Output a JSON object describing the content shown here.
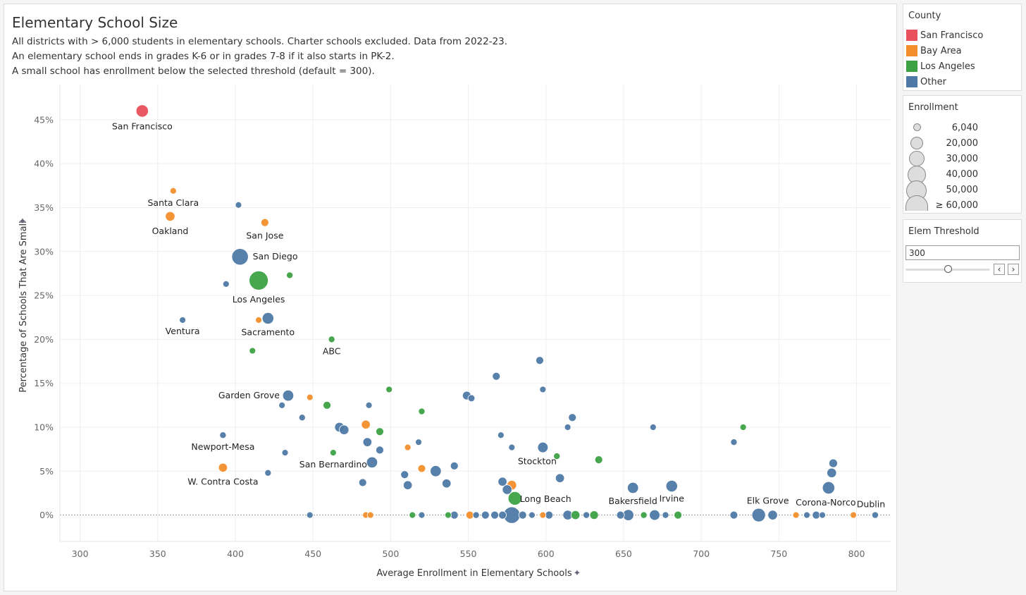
{
  "title": "Elementary School Size",
  "subtitle_lines": [
    "All districts with > 6,000 students in elementary schools. Charter schools excluded. Data from 2022-23.",
    "An elementary school ends in grades K-6 or in grades 7-8 if it also starts in PK-2.",
    "A small school has enrollment below the selected threshold (default = 300)."
  ],
  "colors": {
    "San Francisco": "#e8505b",
    "Bay Area": "#f28e2b",
    "Los Angeles": "#3da244",
    "Other": "#4e79a7"
  },
  "legend_county": {
    "title": "County",
    "items": [
      "San Francisco",
      "Bay Area",
      "Los Angeles",
      "Other"
    ]
  },
  "legend_enrollment": {
    "title": "Enrollment",
    "items": [
      "6,040",
      "20,000",
      "30,000",
      "40,000",
      "50,000",
      "≥ 60,000"
    ]
  },
  "threshold": {
    "title": "Elem Threshold",
    "value": "300",
    "prev_icon": "chevron-left-icon",
    "next_icon": "chevron-right-icon"
  },
  "chart_data": {
    "type": "scatter",
    "xlabel": "Average Enrollment in Elementary Schools",
    "ylabel": "Percentage of Schools That Are Small",
    "xlim": [
      287,
      822
    ],
    "ylim": [
      -3,
      49
    ],
    "xticks": [
      300,
      350,
      400,
      450,
      500,
      550,
      600,
      650,
      700,
      750,
      800
    ],
    "yticks": [
      0,
      5,
      10,
      15,
      20,
      25,
      30,
      35,
      40,
      45
    ],
    "ytick_labels": [
      "0%",
      "5%",
      "10%",
      "15%",
      "20%",
      "25%",
      "30%",
      "35%",
      "40%",
      "45%"
    ],
    "grid": true,
    "size_encoding": "Enrollment",
    "points": [
      {
        "x": 340,
        "y": 46,
        "county": "San Francisco",
        "enroll": 25000,
        "label": "San Francisco"
      },
      {
        "x": 360,
        "y": 36.9,
        "county": "Bay Area",
        "enroll": 6000
      },
      {
        "x": 358,
        "y": 34,
        "county": "Bay Area",
        "enroll": 15000
      },
      {
        "x": 402,
        "y": 35.3,
        "county": "Other",
        "enroll": 6000
      },
      {
        "x": 419,
        "y": 33.3,
        "county": "Bay Area",
        "enroll": 10000
      },
      {
        "x": 403,
        "y": 29.4,
        "county": "Other",
        "enroll": 45000
      },
      {
        "x": 415,
        "y": 26.7,
        "county": "Los Angeles",
        "enroll": 60000
      },
      {
        "x": 435,
        "y": 27.3,
        "county": "Los Angeles",
        "enroll": 7000
      },
      {
        "x": 394,
        "y": 26.3,
        "county": "Other",
        "enroll": 6000
      },
      {
        "x": 421,
        "y": 22.4,
        "county": "Other",
        "enroll": 22000
      },
      {
        "x": 415,
        "y": 22.2,
        "county": "Bay Area",
        "enroll": 6000
      },
      {
        "x": 366,
        "y": 22.2,
        "county": "Other",
        "enroll": 6000
      },
      {
        "x": 462,
        "y": 20,
        "county": "Los Angeles",
        "enroll": 7000
      },
      {
        "x": 411,
        "y": 18.7,
        "county": "Los Angeles",
        "enroll": 6000
      },
      {
        "x": 596,
        "y": 17.6,
        "county": "Other",
        "enroll": 10000
      },
      {
        "x": 568,
        "y": 15.8,
        "county": "Other",
        "enroll": 10000
      },
      {
        "x": 598,
        "y": 14.3,
        "county": "Other",
        "enroll": 6000
      },
      {
        "x": 499,
        "y": 14.3,
        "county": "Los Angeles",
        "enroll": 6000
      },
      {
        "x": 434,
        "y": 13.6,
        "county": "Other",
        "enroll": 20000
      },
      {
        "x": 448,
        "y": 13.4,
        "county": "Bay Area",
        "enroll": 6000
      },
      {
        "x": 549,
        "y": 13.6,
        "county": "Other",
        "enroll": 12000
      },
      {
        "x": 552,
        "y": 13.3,
        "county": "Other",
        "enroll": 8000
      },
      {
        "x": 430,
        "y": 12.5,
        "county": "Other",
        "enroll": 6000
      },
      {
        "x": 486,
        "y": 12.5,
        "county": "Other",
        "enroll": 6000
      },
      {
        "x": 459,
        "y": 12.5,
        "county": "Los Angeles",
        "enroll": 10000
      },
      {
        "x": 520,
        "y": 11.8,
        "county": "Los Angeles",
        "enroll": 7000
      },
      {
        "x": 443,
        "y": 11.1,
        "county": "Other",
        "enroll": 7000
      },
      {
        "x": 617,
        "y": 11.1,
        "county": "Other",
        "enroll": 10000
      },
      {
        "x": 467,
        "y": 10,
        "county": "Other",
        "enroll": 15000
      },
      {
        "x": 470,
        "y": 9.7,
        "county": "Other",
        "enroll": 15000
      },
      {
        "x": 484,
        "y": 10.3,
        "county": "Bay Area",
        "enroll": 13000
      },
      {
        "x": 493,
        "y": 9.5,
        "county": "Los Angeles",
        "enroll": 10000
      },
      {
        "x": 614,
        "y": 10,
        "county": "Other",
        "enroll": 6000
      },
      {
        "x": 669,
        "y": 10,
        "county": "Other",
        "enroll": 6000
      },
      {
        "x": 727,
        "y": 10,
        "county": "Los Angeles",
        "enroll": 6000
      },
      {
        "x": 392,
        "y": 9.1,
        "county": "Other",
        "enroll": 7000
      },
      {
        "x": 571,
        "y": 9.1,
        "county": "Other",
        "enroll": 6000
      },
      {
        "x": 721,
        "y": 8.3,
        "county": "Other",
        "enroll": 7000
      },
      {
        "x": 485,
        "y": 8.3,
        "county": "Other",
        "enroll": 13000
      },
      {
        "x": 518,
        "y": 8.3,
        "county": "Other",
        "enroll": 6000
      },
      {
        "x": 511,
        "y": 7.7,
        "county": "Bay Area",
        "enroll": 6000
      },
      {
        "x": 578,
        "y": 7.7,
        "county": "Other",
        "enroll": 6000
      },
      {
        "x": 598,
        "y": 7.7,
        "county": "Other",
        "enroll": 18000
      },
      {
        "x": 493,
        "y": 7.4,
        "county": "Other",
        "enroll": 10000
      },
      {
        "x": 432,
        "y": 7.1,
        "county": "Other",
        "enroll": 6000
      },
      {
        "x": 463,
        "y": 7.1,
        "county": "Los Angeles",
        "enroll": 6000
      },
      {
        "x": 607,
        "y": 6.7,
        "county": "Los Angeles",
        "enroll": 7000
      },
      {
        "x": 634,
        "y": 6.3,
        "county": "Los Angeles",
        "enroll": 10000
      },
      {
        "x": 488,
        "y": 6,
        "county": "Other",
        "enroll": 20000
      },
      {
        "x": 541,
        "y": 5.6,
        "county": "Other",
        "enroll": 10000
      },
      {
        "x": 785,
        "y": 5.9,
        "county": "Other",
        "enroll": 12000
      },
      {
        "x": 392,
        "y": 5.4,
        "county": "Bay Area",
        "enroll": 13000
      },
      {
        "x": 520,
        "y": 5.3,
        "county": "Bay Area",
        "enroll": 10000
      },
      {
        "x": 529,
        "y": 5,
        "county": "Other",
        "enroll": 20000
      },
      {
        "x": 421,
        "y": 4.8,
        "county": "Other",
        "enroll": 7000
      },
      {
        "x": 509,
        "y": 4.6,
        "county": "Other",
        "enroll": 10000
      },
      {
        "x": 784,
        "y": 4.8,
        "county": "Other",
        "enroll": 15000
      },
      {
        "x": 609,
        "y": 4.2,
        "county": "Other",
        "enroll": 13000
      },
      {
        "x": 482,
        "y": 3.7,
        "county": "Other",
        "enroll": 10000
      },
      {
        "x": 572,
        "y": 3.8,
        "county": "Other",
        "enroll": 13000
      },
      {
        "x": 536,
        "y": 3.6,
        "county": "Other",
        "enroll": 13000
      },
      {
        "x": 511,
        "y": 3.4,
        "county": "Other",
        "enroll": 13000
      },
      {
        "x": 578,
        "y": 3.4,
        "county": "Bay Area",
        "enroll": 15000
      },
      {
        "x": 681,
        "y": 3.3,
        "county": "Other",
        "enroll": 22000
      },
      {
        "x": 656,
        "y": 3.1,
        "county": "Other",
        "enroll": 20000
      },
      {
        "x": 782,
        "y": 3.1,
        "county": "Other",
        "enroll": 25000
      },
      {
        "x": 575,
        "y": 2.9,
        "county": "Other",
        "enroll": 15000
      },
      {
        "x": 580,
        "y": 1.9,
        "county": "Los Angeles",
        "enroll": 30000
      },
      {
        "x": 448,
        "y": 0,
        "county": "Other",
        "enroll": 6000
      },
      {
        "x": 484,
        "y": 0,
        "county": "Bay Area",
        "enroll": 6000
      },
      {
        "x": 487,
        "y": 0,
        "county": "Bay Area",
        "enroll": 6000
      },
      {
        "x": 514,
        "y": 0,
        "county": "Los Angeles",
        "enroll": 6000
      },
      {
        "x": 520,
        "y": 0,
        "county": "Other",
        "enroll": 6000
      },
      {
        "x": 537,
        "y": 0,
        "county": "Los Angeles",
        "enroll": 6000
      },
      {
        "x": 541,
        "y": 0,
        "county": "Other",
        "enroll": 10000
      },
      {
        "x": 551,
        "y": 0,
        "county": "Bay Area",
        "enroll": 10000
      },
      {
        "x": 555,
        "y": 0,
        "county": "Other",
        "enroll": 7000
      },
      {
        "x": 561,
        "y": 0,
        "county": "Other",
        "enroll": 10000
      },
      {
        "x": 567,
        "y": 0,
        "county": "Other",
        "enroll": 10000
      },
      {
        "x": 572,
        "y": 0,
        "county": "Other",
        "enroll": 10000
      },
      {
        "x": 578,
        "y": 0,
        "county": "Other",
        "enroll": 45000
      },
      {
        "x": 585,
        "y": 0,
        "county": "Other",
        "enroll": 10000
      },
      {
        "x": 591,
        "y": 0,
        "county": "Other",
        "enroll": 6000
      },
      {
        "x": 598,
        "y": 0,
        "county": "Bay Area",
        "enroll": 6000
      },
      {
        "x": 602,
        "y": 0,
        "county": "Other",
        "enroll": 10000
      },
      {
        "x": 614,
        "y": 0,
        "county": "Other",
        "enroll": 15000
      },
      {
        "x": 619,
        "y": 0,
        "county": "Los Angeles",
        "enroll": 13000
      },
      {
        "x": 626,
        "y": 0,
        "county": "Other",
        "enroll": 7000
      },
      {
        "x": 631,
        "y": 0,
        "county": "Los Angeles",
        "enroll": 12000
      },
      {
        "x": 648,
        "y": 0,
        "county": "Other",
        "enroll": 10000
      },
      {
        "x": 653,
        "y": 0,
        "county": "Other",
        "enroll": 20000
      },
      {
        "x": 663,
        "y": 0,
        "county": "Los Angeles",
        "enroll": 7000
      },
      {
        "x": 670,
        "y": 0,
        "county": "Other",
        "enroll": 18000
      },
      {
        "x": 677,
        "y": 0,
        "county": "Other",
        "enroll": 7000
      },
      {
        "x": 685,
        "y": 0,
        "county": "Los Angeles",
        "enroll": 10000
      },
      {
        "x": 721,
        "y": 0,
        "county": "Other",
        "enroll": 10000
      },
      {
        "x": 737,
        "y": 0,
        "county": "Other",
        "enroll": 30000
      },
      {
        "x": 746,
        "y": 0,
        "county": "Other",
        "enroll": 15000
      },
      {
        "x": 761,
        "y": 0,
        "county": "Bay Area",
        "enroll": 6000
      },
      {
        "x": 768,
        "y": 0,
        "county": "Other",
        "enroll": 6000
      },
      {
        "x": 774,
        "y": 0,
        "county": "Other",
        "enroll": 10000
      },
      {
        "x": 778,
        "y": 0,
        "county": "Other",
        "enroll": 6000
      },
      {
        "x": 798,
        "y": 0,
        "county": "Bay Area",
        "enroll": 6000
      },
      {
        "x": 812,
        "y": 0,
        "county": "Other",
        "enroll": 7000
      }
    ],
    "annotations": [
      {
        "text": "San Francisco",
        "x": 340,
        "y": 46,
        "dy": 22
      },
      {
        "text": "Santa Clara",
        "x": 360,
        "y": 36.9,
        "dy": 17
      },
      {
        "text": "Oakland",
        "x": 358,
        "y": 34,
        "dy": 21
      },
      {
        "text": "San Jose",
        "x": 419,
        "y": 33.3,
        "dy": 19
      },
      {
        "text": "San Diego",
        "x": 403,
        "y": 29.4,
        "dx": 18,
        "dy": 0,
        "anchor": "start"
      },
      {
        "text": "Los Angeles",
        "x": 415,
        "y": 26.7,
        "dy": 27
      },
      {
        "text": "Sacramento",
        "x": 421,
        "y": 22.4,
        "dy": 20
      },
      {
        "text": "Ventura",
        "x": 366,
        "y": 22.2,
        "dy": 16
      },
      {
        "text": "ABC",
        "x": 462,
        "y": 20,
        "dy": 17
      },
      {
        "text": "Garden Grove",
        "x": 434,
        "y": 13.6,
        "dx": -12,
        "dy": 0,
        "anchor": "end"
      },
      {
        "text": "Newport-Mesa",
        "x": 392,
        "y": 9.1,
        "dy": 17
      },
      {
        "text": "San Bernardino",
        "x": 463,
        "y": 7.1,
        "dy": 17
      },
      {
        "text": "W. Contra Costa",
        "x": 392,
        "y": 5.4,
        "dy": 20
      },
      {
        "text": "Stockton",
        "x": 598,
        "y": 7.7,
        "dx": -8,
        "dy": 20
      },
      {
        "text": "Long Beach",
        "x": 580,
        "y": 1.9,
        "dx": 7,
        "dy": 1,
        "anchor": "start"
      },
      {
        "text": "Bakersfield",
        "x": 656,
        "y": 3.1,
        "dy": 19
      },
      {
        "text": "Irvine",
        "x": 681,
        "y": 3.3,
        "dy": 18
      },
      {
        "text": "Elk Grove",
        "x": 737,
        "y": 0,
        "dx": 13,
        "dy": -20
      },
      {
        "text": "Corona-Norco",
        "x": 782,
        "y": 3.1,
        "dx": -4,
        "dy": 21
      },
      {
        "text": "Dublin",
        "x": 812,
        "y": 0,
        "dx": -6,
        "dy": -15
      }
    ]
  }
}
